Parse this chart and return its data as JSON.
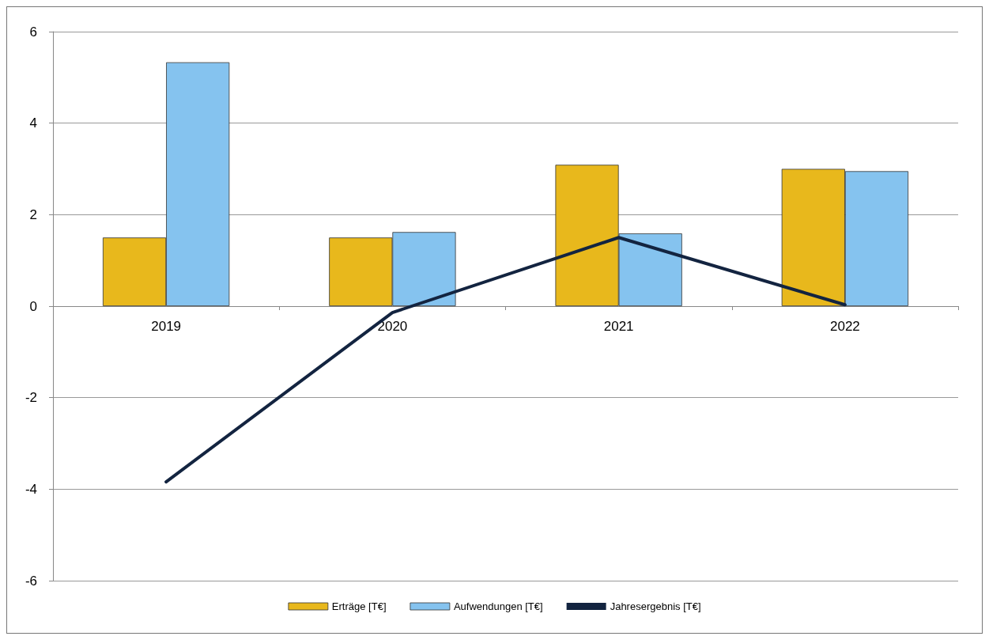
{
  "chart_data": {
    "type": "bar",
    "categories": [
      "2019",
      "2020",
      "2021",
      "2022"
    ],
    "series": [
      {
        "name": "Erträge [T€]",
        "color": "#e8b81c",
        "values": [
          1.5,
          1.5,
          3.09,
          3.0
        ]
      },
      {
        "name": "Aufwendungen [T€]",
        "color": "#85c3ef",
        "values": [
          5.33,
          1.62,
          1.59,
          2.95
        ]
      },
      {
        "name": "Jahresergebnis [T€]",
        "type": "line",
        "color": "#132440",
        "values": [
          -3.84,
          -0.14,
          1.5,
          0.03
        ]
      }
    ],
    "ylim": [
      -6,
      6
    ],
    "yticks": [
      -6,
      -4,
      -2,
      0,
      2,
      4,
      6
    ],
    "grid": "y",
    "legend": "bottom",
    "marker": "none"
  }
}
